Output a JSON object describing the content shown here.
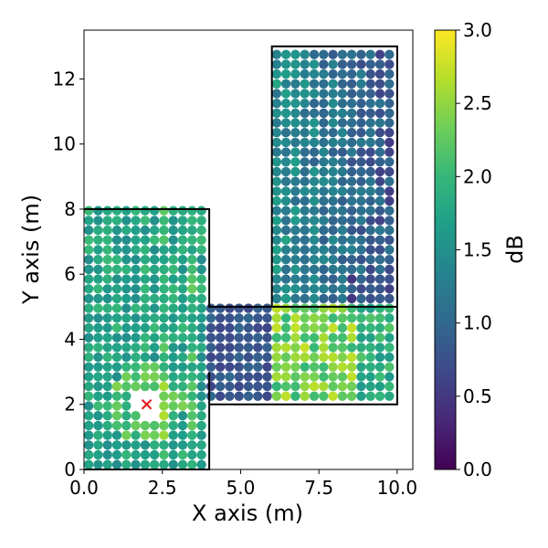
{
  "chart_data": {
    "type": "scatter",
    "title": "",
    "xlabel": "X axis (m)",
    "ylabel": "Y axis (m)",
    "xlim": [
      0,
      10.5
    ],
    "ylim": [
      0,
      13.5
    ],
    "xticks": [
      "0.0",
      "2.5",
      "5.0",
      "7.5",
      "10.0"
    ],
    "yticks": [
      "0",
      "2",
      "4",
      "6",
      "8",
      "10",
      "12"
    ],
    "colorbar": {
      "label": "dB",
      "colormap": "viridis",
      "range": [
        0,
        3.0
      ],
      "ticks": [
        "0.0",
        "0.5",
        "1.0",
        "1.5",
        "2.0",
        "2.5",
        "3.0"
      ]
    },
    "grid": false,
    "marker_spacing": 0.3,
    "transmitter": {
      "x": 2.0,
      "y": 2.0,
      "marker": "x",
      "color": "#e41a1c"
    },
    "regions": [
      {
        "name": "left room",
        "x": [
          0,
          4
        ],
        "y": [
          0,
          8
        ],
        "base_value": 1.75,
        "trend": "higher near x=2.5 and x=3.5 columns; brightest near transmitter"
      },
      {
        "name": "corridor",
        "x": [
          4,
          10
        ],
        "y": [
          2,
          5
        ],
        "base_value": 1.9,
        "trend": "low (~0.6 dB) near x=4–6, rising to ~2.4–2.9 dB near x=6.5–8.5"
      },
      {
        "name": "right room",
        "x": [
          6,
          10
        ],
        "y": [
          5,
          13
        ],
        "base_value": 1.15,
        "trend": "decreasing toward the right edge (~0.6 dB near x=10)"
      }
    ],
    "walls": [
      [
        [
          0,
          8
        ],
        [
          4,
          8
        ],
        [
          4,
          5
        ],
        [
          10,
          5
        ]
      ],
      [
        [
          4,
          3
        ],
        [
          4,
          0
        ],
        [
          0,
          0
        ]
      ],
      [
        [
          4,
          2
        ],
        [
          10,
          2
        ],
        [
          10,
          5
        ]
      ],
      [
        [
          6,
          5
        ],
        [
          6,
          13
        ],
        [
          10,
          13
        ],
        [
          10,
          5
        ]
      ]
    ]
  }
}
